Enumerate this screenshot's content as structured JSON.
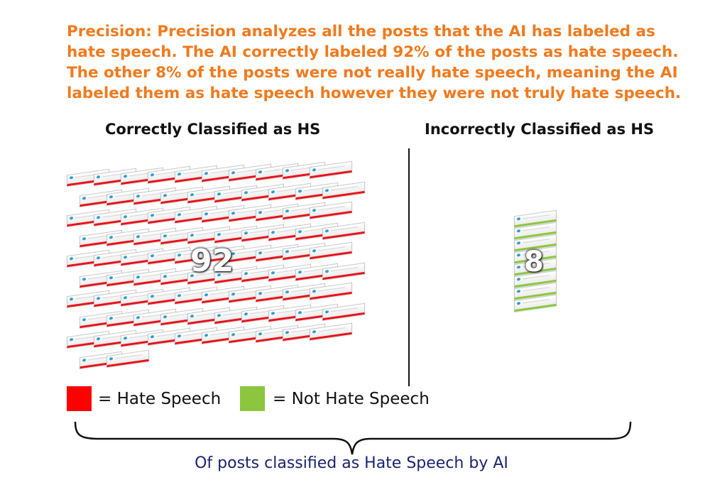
{
  "intro": "Precision: Precision analyzes all the posts that the AI has labeled as hate speech. The AI correctly labeled 92% of the posts as hate speech. The other 8% of the posts were not really hate speech, meaning the AI labeled them as hate speech however they were not truly hate speech.",
  "left_panel": {
    "heading": "Correctly Classified as HS",
    "count": "92",
    "card_color": "#e8121a"
  },
  "right_panel": {
    "heading": "Incorrectly Classified as HS",
    "count": "8",
    "card_color": "#8cc63f"
  },
  "legend": [
    {
      "label": "= Hate Speech",
      "color": "#ff0000"
    },
    {
      "label": "= Not Hate Speech",
      "color": "#8cc63f"
    }
  ],
  "caption": "Of posts classified as Hate Speech by AI",
  "colors": {
    "intro_text": "#f07a1e",
    "caption_text": "#1a2470"
  }
}
